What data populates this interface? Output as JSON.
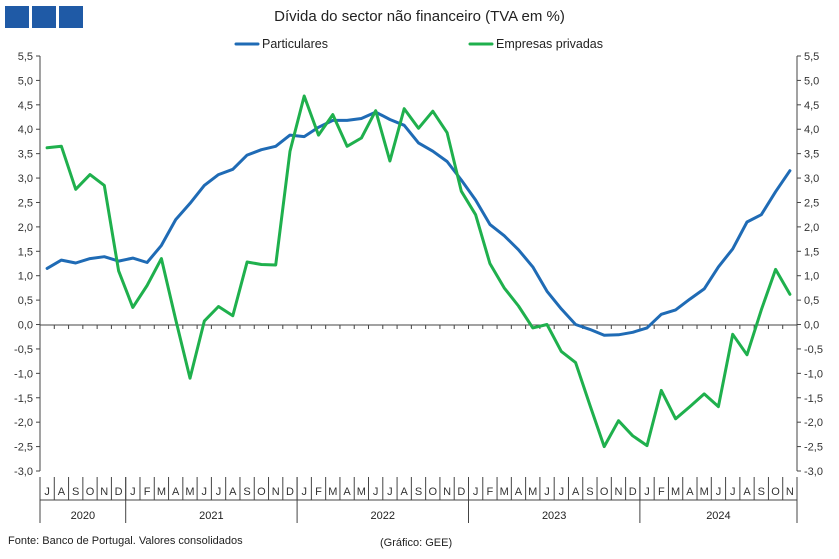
{
  "title": "Dívida do sector não financeiro (TVA em %)",
  "source": "Fonte: Banco de Portugal. Valores consolidados",
  "credit": "(Gráfico: GEE)",
  "colors": {
    "particulares": "#1f6bb5",
    "empresas": "#1fb04d",
    "logo": "#1f5aa6"
  },
  "chart_data": {
    "type": "line",
    "ylim": [
      -3.0,
      5.5
    ],
    "ytick_step": 0.5,
    "ytick_labels": [
      "-3,0",
      "-2,5",
      "-2,0",
      "-1,5",
      "-1,0",
      "-0,5",
      "0,0",
      "0,5",
      "1,0",
      "1,5",
      "2,0",
      "2,5",
      "3,0",
      "3,5",
      "4,0",
      "4,5",
      "5,0",
      "5,5"
    ],
    "month_labels": [
      "J",
      "A",
      "S",
      "O",
      "N",
      "D",
      "J",
      "F",
      "M",
      "A",
      "M",
      "J",
      "J",
      "A",
      "S",
      "O",
      "N",
      "D",
      "J",
      "F",
      "M",
      "A",
      "M",
      "J",
      "J",
      "A",
      "S",
      "O",
      "N",
      "D",
      "J",
      "F",
      "M",
      "A",
      "M",
      "J",
      "J",
      "A",
      "S",
      "O",
      "N",
      "D",
      "J",
      "F",
      "M",
      "A",
      "M",
      "J",
      "J",
      "A",
      "S",
      "O",
      "N"
    ],
    "years": [
      {
        "label": "2020",
        "count": 6
      },
      {
        "label": "2021",
        "count": 12
      },
      {
        "label": "2022",
        "count": 12
      },
      {
        "label": "2023",
        "count": 12
      },
      {
        "label": "2024",
        "count": 11
      }
    ],
    "legend_position": "top-center",
    "series": [
      {
        "name": "Particulares",
        "color": "#1f6bb5",
        "values": [
          1.15,
          1.32,
          1.26,
          1.35,
          1.39,
          1.3,
          1.36,
          1.27,
          1.62,
          2.15,
          2.48,
          2.85,
          3.07,
          3.18,
          3.47,
          3.58,
          3.65,
          3.88,
          3.85,
          4.04,
          4.18,
          4.18,
          4.22,
          4.35,
          4.2,
          4.08,
          3.72,
          3.55,
          3.34,
          2.96,
          2.55,
          2.05,
          1.82,
          1.53,
          1.18,
          0.68,
          0.32,
          0.0,
          -0.1,
          -0.22,
          -0.21,
          -0.16,
          -0.07,
          0.21,
          0.3,
          0.52,
          0.73,
          1.18,
          1.55,
          2.1,
          2.25,
          2.72,
          3.15
        ]
      },
      {
        "name": "Empresas privadas",
        "color": "#1fb04d",
        "values": [
          3.62,
          3.65,
          2.77,
          3.07,
          2.85,
          1.1,
          0.35,
          0.8,
          1.35,
          0.1,
          -1.1,
          0.07,
          0.37,
          0.18,
          1.28,
          1.23,
          1.22,
          3.55,
          4.68,
          3.88,
          4.3,
          3.65,
          3.82,
          4.38,
          3.35,
          4.42,
          4.02,
          4.37,
          3.93,
          2.73,
          2.25,
          1.25,
          0.75,
          0.38,
          -0.07,
          0.0,
          -0.55,
          -0.78,
          -1.65,
          -2.5,
          -1.97,
          -2.28,
          -2.48,
          -1.35,
          -1.93,
          -1.68,
          -1.42,
          -1.68,
          -0.2,
          -0.62,
          0.3,
          1.13,
          0.62
        ]
      }
    ]
  }
}
